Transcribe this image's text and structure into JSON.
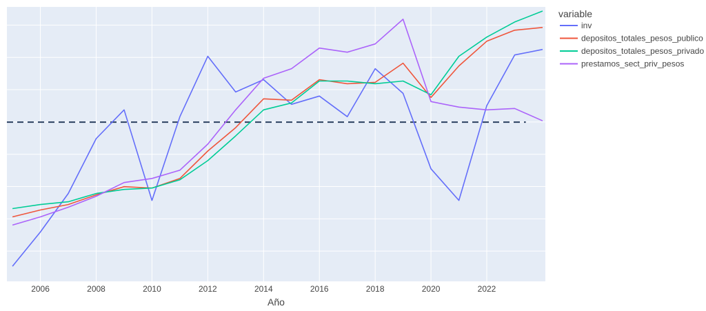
{
  "chart_data": {
    "type": "line",
    "title": "",
    "xlabel": "Año",
    "ylabel": "",
    "xlim": [
      2004.8,
      2024.1
    ],
    "ylim": [
      0,
      1
    ],
    "x_tick_values": [
      2006,
      2008,
      2010,
      2012,
      2014,
      2016,
      2018,
      2020,
      2022
    ],
    "x_tick_labels": [
      "2006",
      "2008",
      "2010",
      "2012",
      "2014",
      "2016",
      "2018",
      "2020",
      "2022"
    ],
    "grid": true,
    "legend_title": "variable",
    "legend_position": "right",
    "x": [
      2005,
      2006,
      2007,
      2008,
      2009,
      2010,
      2011,
      2012,
      2013,
      2014,
      2015,
      2016,
      2017,
      2018,
      2019,
      2020,
      2021,
      2022,
      2023,
      2024
    ],
    "series": [
      {
        "name": "inv",
        "color": "#636efa",
        "values": [
          0.055,
          0.18,
          0.32,
          0.52,
          0.625,
          0.295,
          0.6,
          0.82,
          0.69,
          0.735,
          0.645,
          0.675,
          0.6,
          0.775,
          0.685,
          0.41,
          0.295,
          0.64,
          0.825,
          0.845
        ]
      },
      {
        "name": "depositos_totales_pesos_publico",
        "color": "#ef553b",
        "values": [
          0.235,
          0.26,
          0.28,
          0.315,
          0.345,
          0.34,
          0.375,
          0.475,
          0.56,
          0.665,
          0.66,
          0.735,
          0.72,
          0.725,
          0.795,
          0.67,
          0.785,
          0.875,
          0.915,
          0.925
        ]
      },
      {
        "name": "depositos_totales_pesos_privado",
        "color": "#00cc96",
        "values": [
          0.265,
          0.28,
          0.29,
          0.32,
          0.335,
          0.34,
          0.37,
          0.44,
          0.53,
          0.625,
          0.65,
          0.73,
          0.73,
          0.72,
          0.73,
          0.68,
          0.82,
          0.89,
          0.945,
          0.985
        ]
      },
      {
        "name": "prestamos_sect_priv_pesos",
        "color": "#ab63fa",
        "values": [
          0.205,
          0.235,
          0.27,
          0.31,
          0.36,
          0.375,
          0.405,
          0.5,
          0.625,
          0.74,
          0.775,
          0.85,
          0.835,
          0.865,
          0.955,
          0.655,
          0.635,
          0.625,
          0.63,
          0.585
        ]
      }
    ],
    "reference_line": {
      "y": 0.58,
      "x_start": 2004.8,
      "x_end": 2023.4,
      "style": "dashed",
      "color": "#2a3f5f"
    }
  }
}
